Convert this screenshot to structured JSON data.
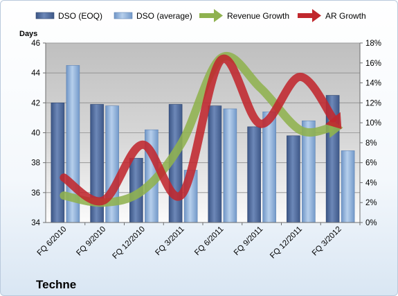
{
  "chart_data": {
    "type": "bar",
    "title": "",
    "company": "Techne",
    "y_left_title": "Days",
    "y_left_lim": [
      34,
      46
    ],
    "y_left_ticks": [
      "34",
      "36",
      "38",
      "40",
      "42",
      "44",
      "46"
    ],
    "y_right_lim": [
      0,
      18
    ],
    "y_right_ticks": [
      "0%",
      "2%",
      "4%",
      "6%",
      "8%",
      "10%",
      "12%",
      "14%",
      "16%",
      "18%"
    ],
    "categories": [
      "FQ 6/2010",
      "FQ 9/2010",
      "FQ 12/2010",
      "FQ 3/2011",
      "FQ 6/2011",
      "FQ 9/2011",
      "FQ 12/2011",
      "FQ 3/2012"
    ],
    "series": [
      {
        "name": "DSO (EOQ)",
        "type": "bar",
        "axis": "left",
        "color": "#4f6b9c",
        "values": [
          42.0,
          41.9,
          38.3,
          41.9,
          41.8,
          40.4,
          39.8,
          42.5
        ]
      },
      {
        "name": "DSO (average)",
        "type": "bar",
        "axis": "left",
        "color": "#8fb1da",
        "values": [
          44.5,
          41.8,
          40.2,
          37.5,
          41.6,
          41.4,
          40.8,
          38.8
        ]
      },
      {
        "name": "Revenue Growth",
        "type": "line",
        "axis": "right",
        "unit": "%",
        "color": "#8fb24f",
        "values": [
          2.7,
          2.0,
          3.2,
          8.0,
          16.5,
          13.5,
          9.3,
          9.5
        ]
      },
      {
        "name": "AR Growth",
        "type": "line",
        "axis": "right",
        "unit": "%",
        "color": "#c0272d",
        "values": [
          4.5,
          2.2,
          7.8,
          2.8,
          16.3,
          9.9,
          14.6,
          9.7
        ]
      }
    ],
    "grid": true,
    "legend": "top"
  }
}
